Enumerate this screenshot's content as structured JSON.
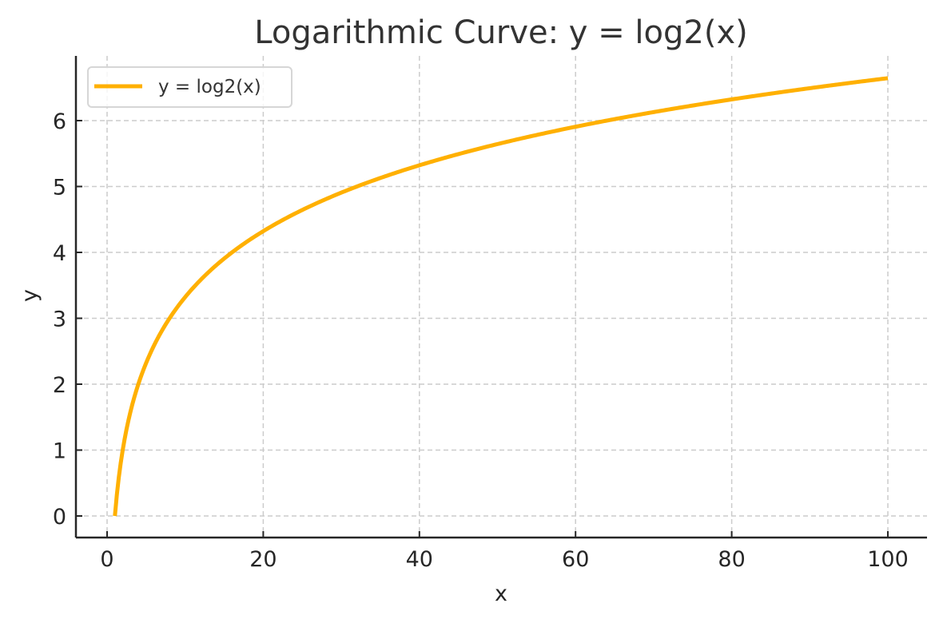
{
  "chart_data": {
    "type": "line",
    "title": "Logarithmic Curve: y = log2(x)",
    "xlabel": "x",
    "ylabel": "y",
    "xlim": [
      -4,
      105
    ],
    "ylim": [
      -0.33,
      7.0
    ],
    "xticks": [
      0,
      20,
      40,
      60,
      80,
      100
    ],
    "yticks": [
      0,
      1,
      2,
      3,
      4,
      5,
      6
    ],
    "grid": true,
    "legend_position": "upper left",
    "series": [
      {
        "name": "y = log2(x)",
        "color": "#FFB000",
        "function": "log2(x)",
        "x_range": [
          1,
          100
        ],
        "x": [
          1,
          2,
          4,
          8,
          10,
          16,
          20,
          30,
          40,
          50,
          60,
          70,
          80,
          90,
          100
        ],
        "y": [
          0,
          1,
          2,
          3,
          3.32,
          4,
          4.32,
          4.91,
          5.32,
          5.64,
          5.91,
          6.13,
          6.32,
          6.49,
          6.64
        ]
      }
    ]
  },
  "colors": {
    "line": "#FFB000",
    "axis": "#262626",
    "grid": "#cccccc"
  }
}
